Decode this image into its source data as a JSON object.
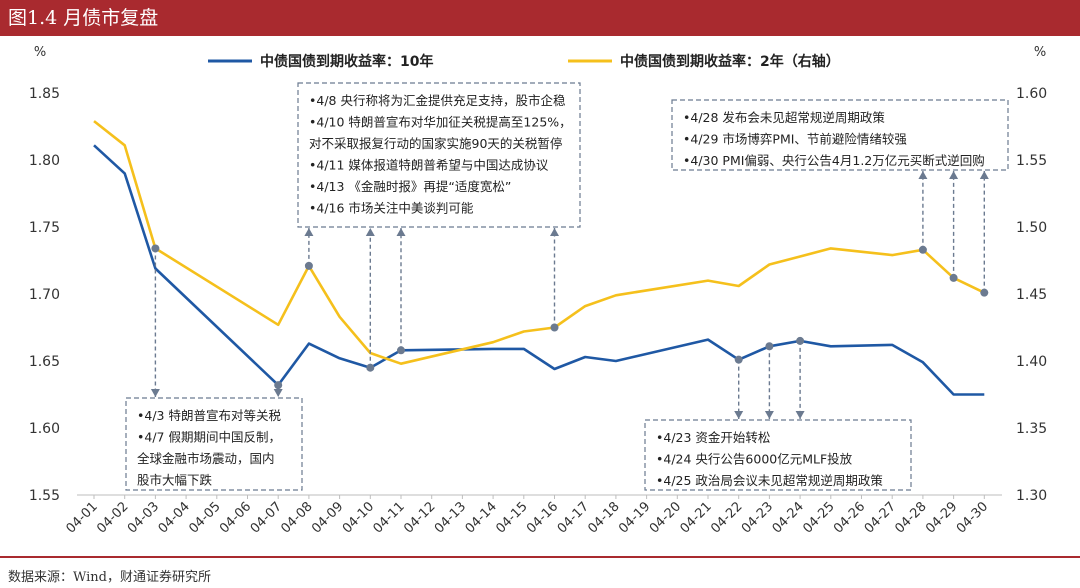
{
  "header": {
    "title": "图1.4 月债市复盘"
  },
  "footer": {
    "source": "数据来源：Wind，财通证券研究所"
  },
  "colors": {
    "brand": "#a92a2f",
    "series_10y": "#1f58a4",
    "series_2y": "#f5c01c",
    "annotation": "#6b7a90"
  },
  "chart_data": {
    "type": "line",
    "categories": [
      "04-01",
      "04-02",
      "04-03",
      "04-04",
      "04-05",
      "04-06",
      "04-07",
      "04-08",
      "04-09",
      "04-10",
      "04-11",
      "04-12",
      "04-13",
      "04-14",
      "04-15",
      "04-16",
      "04-17",
      "04-18",
      "04-19",
      "04-20",
      "04-21",
      "04-22",
      "04-23",
      "04-24",
      "04-25",
      "04-26",
      "04-27",
      "04-28",
      "04-29",
      "04-30"
    ],
    "y_left": {
      "unit": "%",
      "ylim": [
        1.55,
        1.85
      ],
      "ticks": [
        "1.55",
        "1.60",
        "1.65",
        "1.70",
        "1.75",
        "1.80",
        "1.85"
      ]
    },
    "y_right": {
      "unit": "%",
      "ylim": [
        1.3,
        1.6
      ],
      "ticks": [
        "1.30",
        "1.35",
        "1.40",
        "1.45",
        "1.50",
        "1.55",
        "1.60"
      ]
    },
    "legend_position": "top",
    "series": [
      {
        "name": "中债国债到期收益率：10年",
        "axis": "left",
        "x": [
          "04-01",
          "04-02",
          "04-03",
          "04-07",
          "04-08",
          "04-09",
          "04-10",
          "04-11",
          "04-14",
          "04-15",
          "04-16",
          "04-17",
          "04-18",
          "04-21",
          "04-22",
          "04-23",
          "04-24",
          "04-25",
          "04-27",
          "04-28",
          "04-29",
          "04-30"
        ],
        "values": [
          1.811,
          1.79,
          1.719,
          1.632,
          1.663,
          1.652,
          1.645,
          1.658,
          1.659,
          1.659,
          1.644,
          1.653,
          1.65,
          1.666,
          1.651,
          1.661,
          1.665,
          1.661,
          1.662,
          1.649,
          1.625,
          1.625
        ]
      },
      {
        "name": "中债国债到期收益率：2年（右轴）",
        "axis": "right",
        "x": [
          "04-01",
          "04-02",
          "04-03",
          "04-07",
          "04-08",
          "04-09",
          "04-10",
          "04-11",
          "04-14",
          "04-15",
          "04-16",
          "04-17",
          "04-18",
          "04-21",
          "04-22",
          "04-23",
          "04-24",
          "04-25",
          "04-27",
          "04-28",
          "04-29",
          "04-30"
        ],
        "values": [
          1.579,
          1.561,
          1.484,
          1.427,
          1.471,
          1.433,
          1.406,
          1.398,
          1.414,
          1.422,
          1.425,
          1.441,
          1.449,
          1.46,
          1.456,
          1.472,
          1.478,
          1.484,
          1.479,
          1.483,
          1.462,
          1.451
        ]
      }
    ],
    "annotations": [
      {
        "box": "4/3 box",
        "lines": [
          "•4/3 特朗普宣布对等关税",
          "•4/7 假期期间中国反制，",
          "全球金融市场震动，国内",
          "股市大幅下跌"
        ]
      },
      {
        "box": "4/8 box",
        "lines": [
          "•4/8 央行称将为汇金提供充足支持，股市企稳",
          "•4/10 特朗普宣布对华加征关税提高至125%，",
          "对不采取报复行动的国家实施90天的关税暂停",
          "•4/11 媒体报道特朗普希望与中国达成协议",
          "•4/13 《金融时报》再提“适度宽松”",
          "•4/16 市场关注中美谈判可能"
        ]
      },
      {
        "box": "4/23 box",
        "lines": [
          "•4/23 资金开始转松",
          "•4/24 央行公告6000亿元MLF投放",
          "•4/25 政治局会议未见超常规逆周期政策"
        ]
      },
      {
        "box": "4/28 box",
        "lines": [
          "•4/28 发布会未见超常规逆周期政策",
          "•4/29 市场博弈PMI、节前避险情绪较强",
          "•4/30 PMI偏弱、央行公告4月1.2万亿元买断式逆回购"
        ]
      }
    ]
  }
}
